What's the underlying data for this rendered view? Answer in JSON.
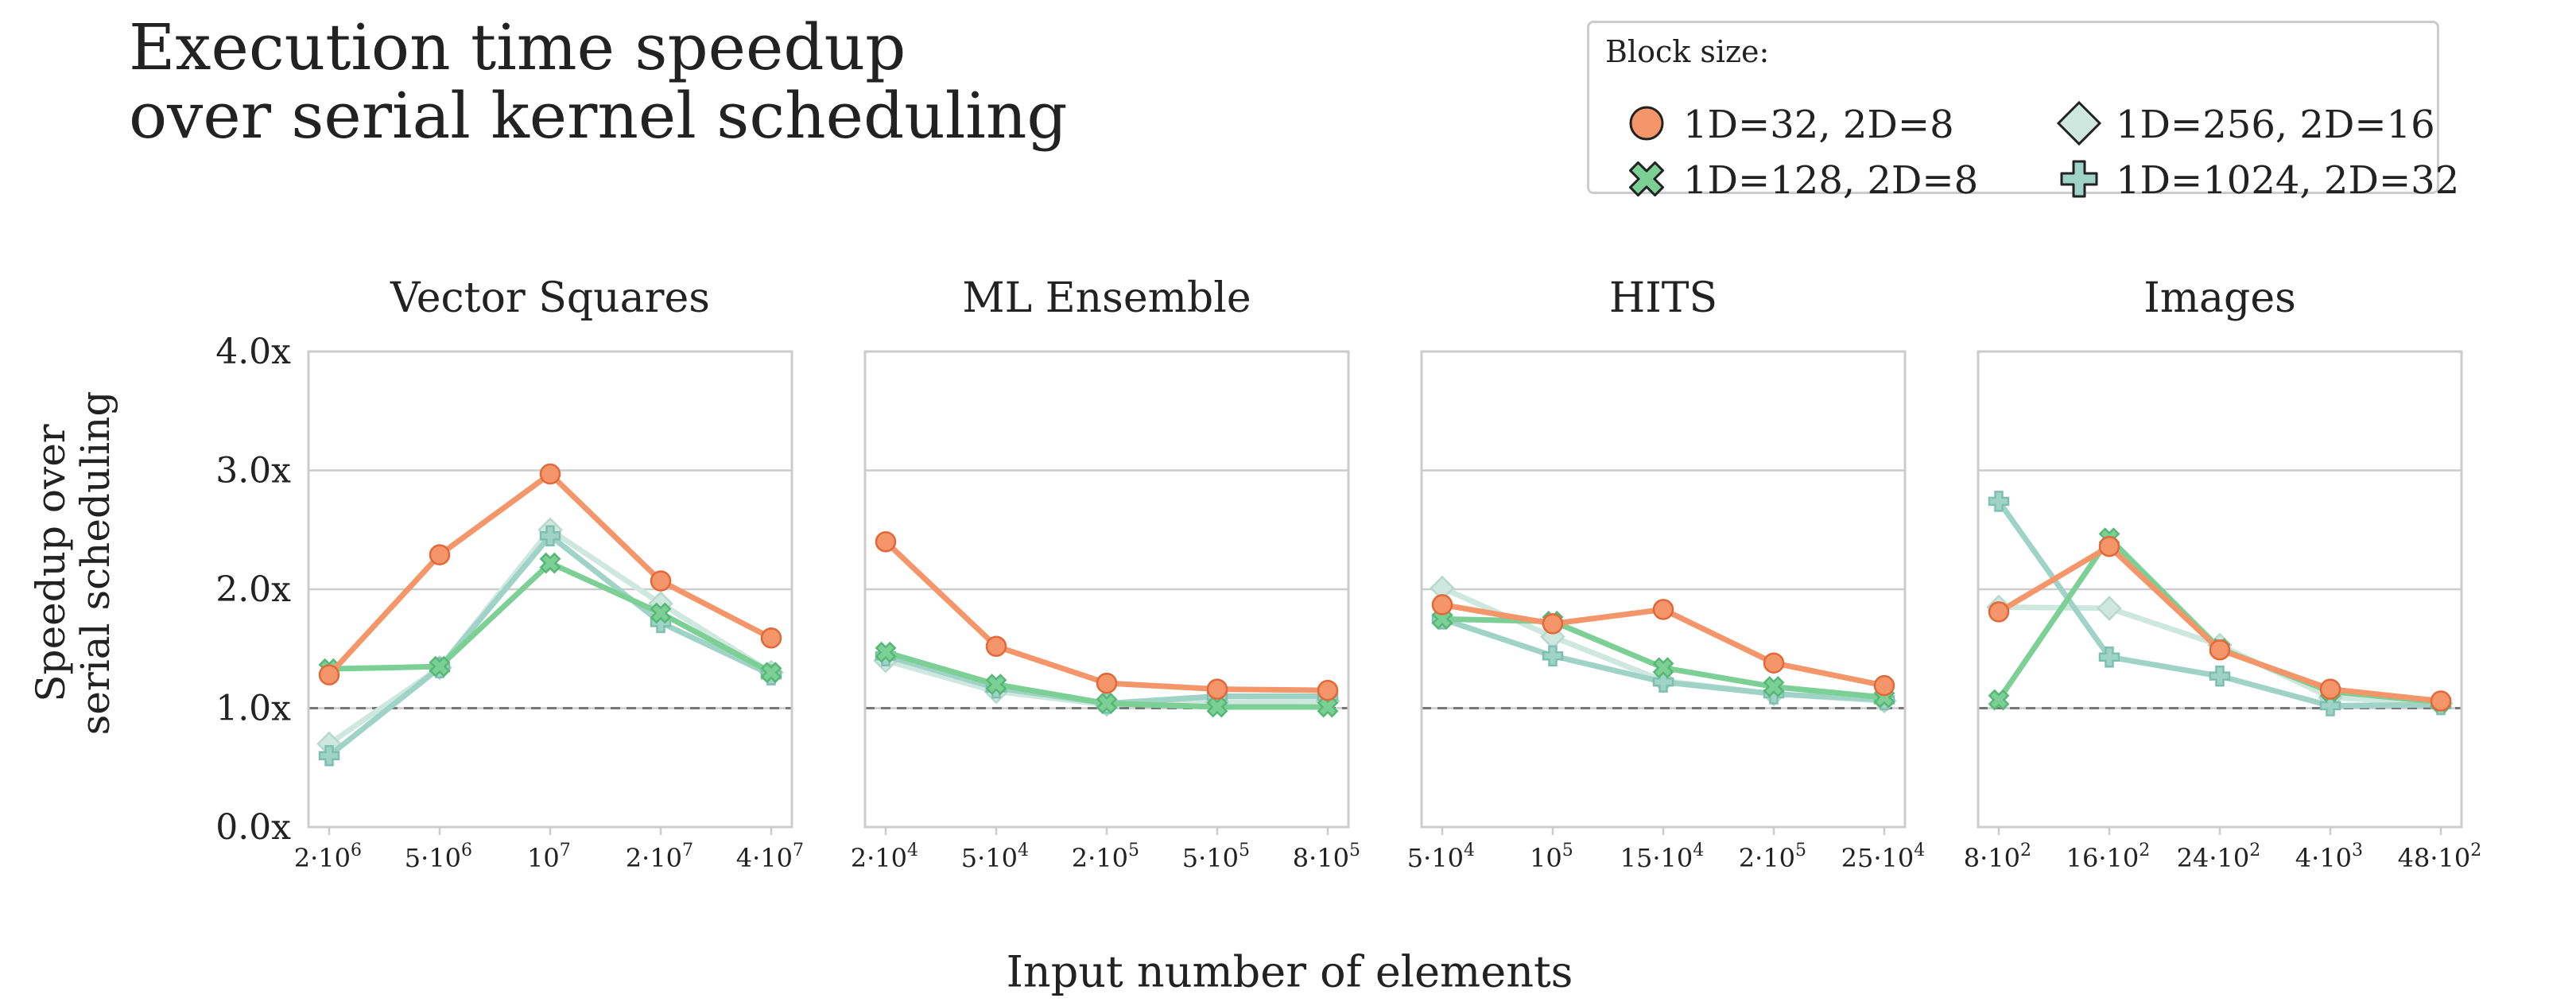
{
  "title_lines": [
    "Execution time speedup",
    "over serial kernel scheduling"
  ],
  "y_label_lines": [
    "Speedup over",
    "serial scheduling"
  ],
  "x_label": "Input number of elements",
  "legend": {
    "title": "Block size:",
    "items": [
      {
        "label": "1D=32, 2D=8",
        "marker": "circle",
        "color": "#f4966a"
      },
      {
        "label": "1D=256, 2D=16",
        "marker": "diamond",
        "color": "#cfe8df"
      },
      {
        "label": "1D=128, 2D=8",
        "marker": "x",
        "color": "#7dd095"
      },
      {
        "label": "1D=1024, 2D=32",
        "marker": "plus",
        "color": "#9fd3c6"
      }
    ]
  },
  "chart_data": [
    {
      "type": "line",
      "title": "Vector Squares",
      "categories": [
        "2·10^6",
        "5·10^6",
        "10^7",
        "2·10^7",
        "4·10^7"
      ],
      "ylim": [
        0,
        4
      ],
      "yticks": [
        "0.0x",
        "1.0x",
        "2.0x",
        "3.0x",
        "4.0x"
      ],
      "reference_line": 1.0,
      "series": [
        {
          "name": "1D=32, 2D=8",
          "values": [
            1.28,
            2.29,
            2.97,
            2.07,
            1.59
          ]
        },
        {
          "name": "1D=128, 2D=8",
          "values": [
            1.33,
            1.35,
            2.22,
            1.8,
            1.3
          ]
        },
        {
          "name": "1D=256, 2D=16",
          "values": [
            0.7,
            1.34,
            2.5,
            1.88,
            1.3
          ]
        },
        {
          "name": "1D=1024, 2D=32",
          "values": [
            0.6,
            1.34,
            2.45,
            1.72,
            1.28
          ]
        }
      ]
    },
    {
      "type": "line",
      "title": "ML Ensemble",
      "categories": [
        "2·10^4",
        "5·10^4",
        "2·10^5",
        "5·10^5",
        "8·10^5"
      ],
      "ylim": [
        0,
        4
      ],
      "yticks": [
        "0.0x",
        "1.0x",
        "2.0x",
        "3.0x",
        "4.0x"
      ],
      "reference_line": 1.0,
      "series": [
        {
          "name": "1D=32, 2D=8",
          "values": [
            2.4,
            1.52,
            1.21,
            1.16,
            1.15
          ]
        },
        {
          "name": "1D=128, 2D=8",
          "values": [
            1.47,
            1.2,
            1.04,
            1.01,
            1.01
          ]
        },
        {
          "name": "1D=256, 2D=16",
          "values": [
            1.4,
            1.14,
            1.03,
            1.05,
            1.06
          ]
        },
        {
          "name": "1D=1024, 2D=32",
          "values": [
            1.44,
            1.17,
            1.04,
            1.1,
            1.1
          ]
        }
      ]
    },
    {
      "type": "line",
      "title": "HITS",
      "categories": [
        "5·10^4",
        "10^5",
        "15·10^4",
        "2·10^5",
        "25·10^4"
      ],
      "ylim": [
        0,
        4
      ],
      "yticks": [
        "0.0x",
        "1.0x",
        "2.0x",
        "3.0x",
        "4.0x"
      ],
      "reference_line": 1.0,
      "series": [
        {
          "name": "1D=32, 2D=8",
          "values": [
            1.87,
            1.71,
            1.83,
            1.38,
            1.19
          ]
        },
        {
          "name": "1D=128, 2D=8",
          "values": [
            1.75,
            1.73,
            1.34,
            1.18,
            1.09
          ]
        },
        {
          "name": "1D=256, 2D=16",
          "values": [
            2.01,
            1.6,
            1.23,
            1.12,
            1.06
          ]
        },
        {
          "name": "1D=1024, 2D=32",
          "values": [
            1.75,
            1.44,
            1.22,
            1.12,
            1.07
          ]
        }
      ]
    },
    {
      "type": "line",
      "title": "Images",
      "categories": [
        "8·10^2",
        "16·10^2",
        "24·10^2",
        "4·10^3",
        "48·10^2"
      ],
      "ylim": [
        0,
        4
      ],
      "yticks": [
        "0.0x",
        "1.0x",
        "2.0x",
        "3.0x",
        "4.0x"
      ],
      "reference_line": 1.0,
      "series": [
        {
          "name": "1D=32, 2D=8",
          "values": [
            1.81,
            2.36,
            1.49,
            1.16,
            1.06
          ]
        },
        {
          "name": "1D=128, 2D=8",
          "values": [
            1.07,
            2.43,
            1.5,
            1.14,
            1.05
          ]
        },
        {
          "name": "1D=256, 2D=16",
          "values": [
            1.85,
            1.84,
            1.53,
            1.09,
            1.04
          ]
        },
        {
          "name": "1D=1024, 2D=32",
          "values": [
            2.74,
            1.43,
            1.27,
            1.02,
            1.03
          ]
        }
      ]
    }
  ]
}
